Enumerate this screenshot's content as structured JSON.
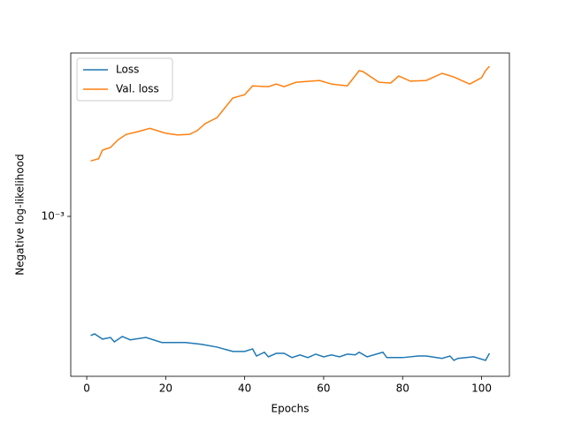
{
  "chart_data": {
    "type": "line",
    "xlabel": "Epochs",
    "ylabel": "Negative log-likelihood",
    "xlim": [
      -4.05,
      107.05
    ],
    "xticks": [
      0,
      20,
      40,
      60,
      80,
      100
    ],
    "ylim": [
      0.000249,
      0.00414
    ],
    "yticks": [
      {
        "value": 0.001,
        "label": "10⁻³"
      }
    ],
    "log_y": true,
    "legend": "upper left",
    "series": [
      {
        "name": "Loss",
        "color": "#1f77b4",
        "x": [
          1,
          2,
          4,
          6,
          7,
          9,
          11,
          15,
          19,
          25,
          29,
          33,
          37,
          40,
          42,
          43,
          45,
          46,
          48,
          50,
          52,
          54,
          56,
          58,
          60,
          62,
          64,
          66,
          68,
          69,
          71,
          75,
          76,
          80,
          84,
          86,
          90,
          92,
          93,
          94,
          98,
          101,
          102
        ],
        "values": [
          0.000355,
          0.00036,
          0.000344,
          0.000349,
          0.000336,
          0.000352,
          0.000342,
          0.000349,
          0.000334,
          0.000334,
          0.000329,
          0.000321,
          0.000309,
          0.000309,
          0.000316,
          0.000297,
          0.000307,
          0.000295,
          0.000304,
          0.000304,
          0.000293,
          0.0003,
          0.000293,
          0.000302,
          0.000295,
          0.0003,
          0.000295,
          0.000302,
          0.0003,
          0.000307,
          0.000295,
          0.000307,
          0.000293,
          0.000293,
          0.000297,
          0.000297,
          0.000291,
          0.000297,
          0.000286,
          0.000291,
          0.000295,
          0.000286,
          0.000304
        ]
      },
      {
        "name": "Val. loss",
        "color": "#ff7f0e",
        "x": [
          1,
          3,
          4,
          6,
          8,
          10,
          13,
          16,
          20,
          23,
          26,
          28,
          30,
          33,
          37,
          40,
          42,
          46,
          48,
          50,
          53,
          59,
          62,
          66,
          69,
          70,
          74,
          77,
          79,
          82,
          86,
          90,
          93,
          97,
          100,
          101,
          102
        ],
        "values": [
          0.00162,
          0.00165,
          0.00178,
          0.00182,
          0.00195,
          0.00204,
          0.00209,
          0.00215,
          0.00206,
          0.00203,
          0.00204,
          0.00211,
          0.00224,
          0.00236,
          0.0028,
          0.00288,
          0.00311,
          0.00309,
          0.00316,
          0.00309,
          0.00321,
          0.00326,
          0.00316,
          0.00311,
          0.00355,
          0.00352,
          0.00321,
          0.00319,
          0.00339,
          0.00324,
          0.00326,
          0.00347,
          0.00336,
          0.00316,
          0.00334,
          0.00355,
          0.00369
        ]
      }
    ]
  }
}
